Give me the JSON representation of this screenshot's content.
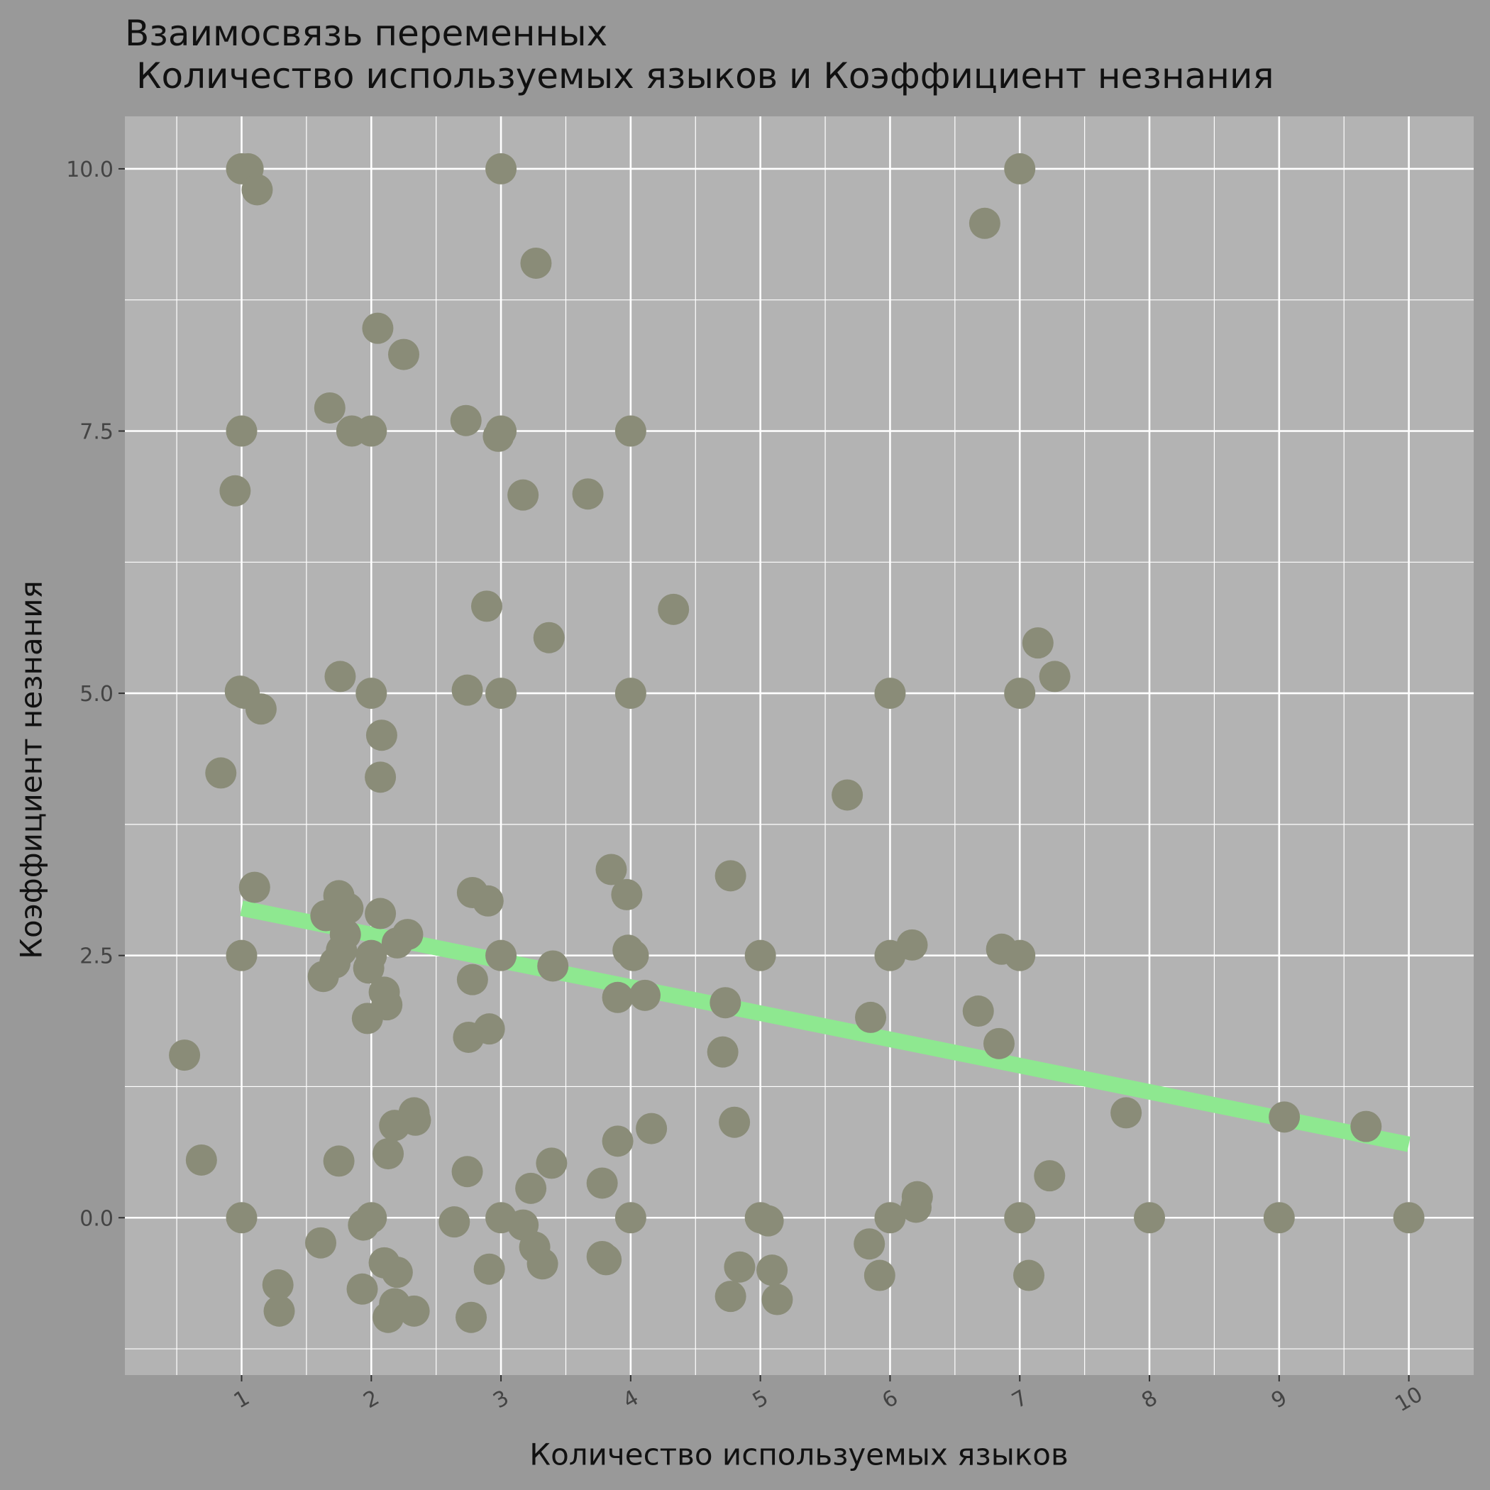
{
  "chart_data": {
    "type": "scatter",
    "title": "Взаимосвязь переменных",
    "subtitle": "Количество используемых языков и Коэффициент незнания",
    "xlabel": "Количество используемых языков",
    "ylabel": "Коэффициент незнания",
    "xlim": [
      0.1,
      10.5
    ],
    "ylim": [
      -1.5,
      10.5
    ],
    "x_ticks": [
      "1",
      "2",
      "3",
      "4",
      "5",
      "6",
      "7",
      "8",
      "9",
      "10"
    ],
    "y_ticks": [
      "0.0",
      "2.5",
      "5.0",
      "7.5",
      "10.0"
    ],
    "grid": true,
    "legend": "none",
    "colors": {
      "panel": "#b3b3b3",
      "background": "#999999",
      "point": "#8a8c78",
      "trend": "#8ee890",
      "grid": "#ffffff"
    },
    "points": [
      [
        1,
        10
      ],
      [
        1.05,
        10
      ],
      [
        1.12,
        9.8
      ],
      [
        3,
        10
      ],
      [
        7,
        10
      ],
      [
        6.73,
        9.48
      ],
      [
        3.27,
        9.1
      ],
      [
        2.05,
        8.48
      ],
      [
        2.25,
        8.23
      ],
      [
        1.68,
        7.72
      ],
      [
        1.85,
        7.5
      ],
      [
        2,
        7.5
      ],
      [
        1,
        7.5
      ],
      [
        2.73,
        7.6
      ],
      [
        3,
        7.5
      ],
      [
        2.98,
        7.45
      ],
      [
        4,
        7.5
      ],
      [
        0.95,
        6.93
      ],
      [
        3.17,
        6.89
      ],
      [
        3.67,
        6.9
      ],
      [
        2.89,
        5.83
      ],
      [
        4.33,
        5.8
      ],
      [
        3.37,
        5.53
      ],
      [
        7.14,
        5.48
      ],
      [
        7.27,
        5.16
      ],
      [
        1.76,
        5.16
      ],
      [
        0.99,
        5.02
      ],
      [
        1.02,
        5
      ],
      [
        2,
        5
      ],
      [
        2.74,
        5.03
      ],
      [
        3,
        5
      ],
      [
        4,
        5
      ],
      [
        6,
        5
      ],
      [
        7,
        5
      ],
      [
        1.15,
        4.85
      ],
      [
        2.08,
        4.6
      ],
      [
        2.07,
        4.2
      ],
      [
        0.84,
        4.24
      ],
      [
        5.67,
        4.03
      ],
      [
        1.1,
        3.15
      ],
      [
        3.85,
        3.32
      ],
      [
        4.77,
        3.26
      ],
      [
        1.75,
        3.07
      ],
      [
        1.82,
        2.95
      ],
      [
        2.07,
        2.9
      ],
      [
        2.78,
        3.1
      ],
      [
        2.9,
        3.02
      ],
      [
        3.97,
        3.08
      ],
      [
        1.65,
        2.88
      ],
      [
        1.8,
        2.7
      ],
      [
        2.28,
        2.7
      ],
      [
        2.2,
        2.62
      ],
      [
        1.77,
        2.55
      ],
      [
        2,
        2.5
      ],
      [
        1,
        2.5
      ],
      [
        3,
        2.5
      ],
      [
        1.72,
        2.43
      ],
      [
        1.98,
        2.38
      ],
      [
        2.1,
        2.15
      ],
      [
        1.63,
        2.3
      ],
      [
        2.78,
        2.27
      ],
      [
        3.4,
        2.4
      ],
      [
        3.98,
        2.55
      ],
      [
        4.02,
        2.5
      ],
      [
        5,
        2.5
      ],
      [
        6,
        2.5
      ],
      [
        6.17,
        2.6
      ],
      [
        6.86,
        2.56
      ],
      [
        7,
        2.5
      ],
      [
        3.9,
        2.1
      ],
      [
        4.11,
        2.12
      ],
      [
        4.73,
        2.05
      ],
      [
        2.12,
        2.03
      ],
      [
        1.97,
        1.9
      ],
      [
        6.68,
        1.97
      ],
      [
        5.85,
        1.91
      ],
      [
        2.91,
        1.8
      ],
      [
        2.75,
        1.72
      ],
      [
        6.84,
        1.66
      ],
      [
        4.71,
        1.58
      ],
      [
        0.56,
        1.55
      ],
      [
        7.82,
        1
      ],
      [
        2.33,
        1
      ],
      [
        2.34,
        0.93
      ],
      [
        2.18,
        0.88
      ],
      [
        4.8,
        0.91
      ],
      [
        4.16,
        0.85
      ],
      [
        9.04,
        0.96
      ],
      [
        9.67,
        0.87
      ],
      [
        3.9,
        0.73
      ],
      [
        0.69,
        0.55
      ],
      [
        1.75,
        0.54
      ],
      [
        2.13,
        0.61
      ],
      [
        3.39,
        0.52
      ],
      [
        2.74,
        0.44
      ],
      [
        7.23,
        0.4
      ],
      [
        3.78,
        0.33
      ],
      [
        3.23,
        0.28
      ],
      [
        6.21,
        0.2
      ],
      [
        6.2,
        0.1
      ],
      [
        1,
        0
      ],
      [
        2,
        0
      ],
      [
        3,
        0
      ],
      [
        4,
        0
      ],
      [
        5,
        0
      ],
      [
        5.06,
        -0.03
      ],
      [
        6,
        0
      ],
      [
        7,
        0
      ],
      [
        8,
        0
      ],
      [
        9,
        0
      ],
      [
        10,
        0
      ],
      [
        2.64,
        -0.04
      ],
      [
        1.94,
        -0.07
      ],
      [
        3.17,
        -0.07
      ],
      [
        1.61,
        -0.24
      ],
      [
        3.26,
        -0.28
      ],
      [
        5.84,
        -0.25
      ],
      [
        3.78,
        -0.37
      ],
      [
        3.81,
        -0.4
      ],
      [
        2.1,
        -0.43
      ],
      [
        3.32,
        -0.44
      ],
      [
        2.2,
        -0.52
      ],
      [
        2.91,
        -0.49
      ],
      [
        4.84,
        -0.47
      ],
      [
        5.09,
        -0.5
      ],
      [
        5.92,
        -0.55
      ],
      [
        7.07,
        -0.55
      ],
      [
        1.28,
        -0.64
      ],
      [
        1.93,
        -0.68
      ],
      [
        2.18,
        -0.82
      ],
      [
        4.77,
        -0.75
      ],
      [
        5.13,
        -0.78
      ],
      [
        1.29,
        -0.89
      ],
      [
        2.33,
        -0.89
      ],
      [
        2.13,
        -0.95
      ],
      [
        2.77,
        -0.95
      ]
    ],
    "trend_line": {
      "x": [
        1,
        10
      ],
      "y": [
        2.95,
        0.7
      ]
    }
  }
}
